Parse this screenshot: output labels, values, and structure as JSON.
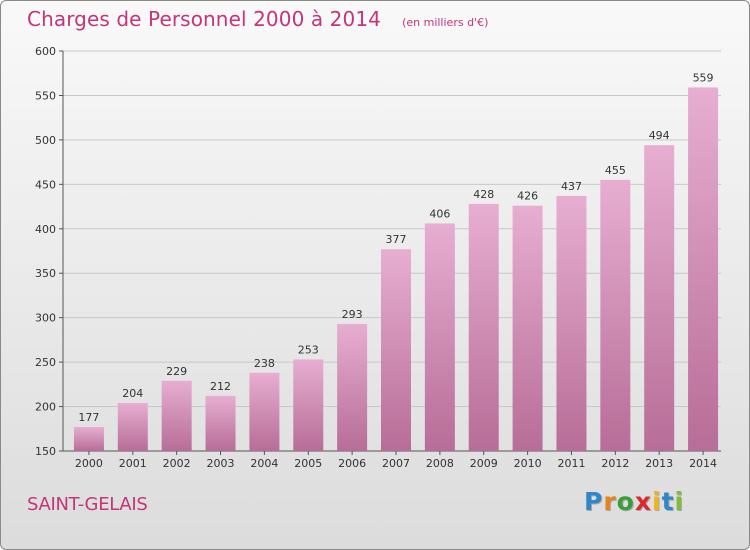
{
  "title": "Charges de Personnel 2000 à 2014",
  "subtitle": "(en milliers d'€)",
  "commune": "SAINT-GELAIS",
  "logo": {
    "text": "Proxiti",
    "letters": [
      {
        "ch": "P",
        "color": "#2f86c8"
      },
      {
        "ch": "r",
        "color": "#e8821e"
      },
      {
        "ch": "o",
        "color": "#3a9e3a"
      },
      {
        "ch": "x",
        "color": "#d92b2b"
      },
      {
        "ch": "i",
        "color": "#f0b51a"
      },
      {
        "ch": "t",
        "color": "#2f86c8"
      },
      {
        "ch": "i",
        "color": "#7dbf3a"
      }
    ]
  },
  "colors": {
    "accent": "#c4357a",
    "bar_top": "#e7aed1",
    "bar_bottom": "#b76d97",
    "grid": "#c8c8c8"
  },
  "chart_data": {
    "type": "bar",
    "title": "Charges de Personnel 2000 à 2014",
    "subtitle": "(en milliers d'€)",
    "categories": [
      "2000",
      "2001",
      "2002",
      "2003",
      "2004",
      "2005",
      "2006",
      "2007",
      "2008",
      "2009",
      "2010",
      "2011",
      "2012",
      "2013",
      "2014"
    ],
    "values": [
      177,
      204,
      229,
      212,
      238,
      253,
      293,
      377,
      406,
      428,
      426,
      437,
      455,
      494,
      559
    ],
    "ylim": [
      150,
      600
    ],
    "yticks": [
      150,
      200,
      250,
      300,
      350,
      400,
      450,
      500,
      550,
      600
    ],
    "grid": true,
    "data_labels": true
  }
}
